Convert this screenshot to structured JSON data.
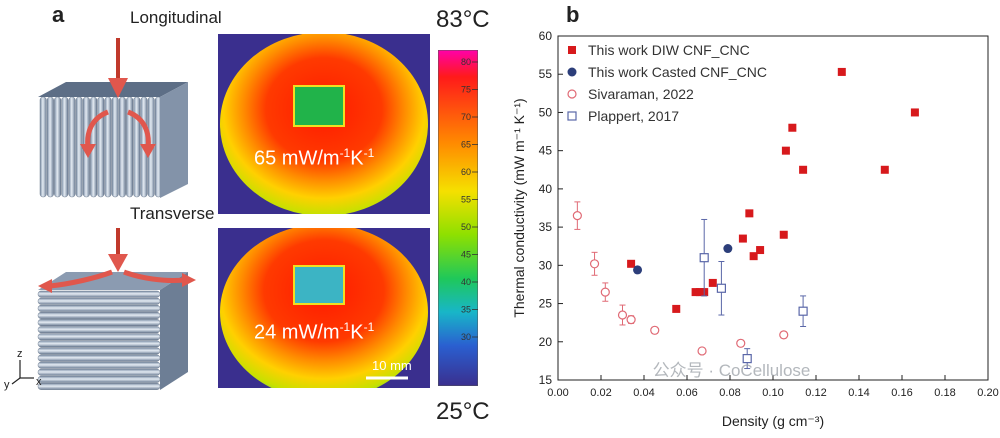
{
  "panel_a": {
    "letter": "a",
    "longitudinal_label": "Longitudinal",
    "transverse_label": "Transverse",
    "top_image_label": "65 mW/m",
    "top_image_sup": "-1",
    "top_image_unit": "K",
    "top_image_sup2": "-1",
    "bottom_image_label": "24 mW/m",
    "bottom_image_sup": "-1",
    "bottom_image_unit": "K",
    "bottom_image_sup2": "-1",
    "scale_bar": "10 mm",
    "temp_max": "83°C",
    "temp_min": "25°C",
    "colorbar_ticks": [
      "80",
      "75",
      "70",
      "65",
      "60",
      "55",
      "50",
      "45",
      "40",
      "35",
      "30"
    ],
    "axes_labels": {
      "z": "z",
      "y": "y",
      "x": "x"
    }
  },
  "panel_b": {
    "letter": "b",
    "watermark": "公众号 · CoCellulose"
  },
  "chart_data": {
    "type": "scatter",
    "xlabel": "Density (g cm⁻³)",
    "ylabel": "Thermal conductivity (mW m⁻¹ K⁻¹)",
    "xlim": [
      0.0,
      0.2
    ],
    "ylim": [
      15,
      60
    ],
    "xticks": [
      "0.00",
      "0.02",
      "0.04",
      "0.06",
      "0.08",
      "0.10",
      "0.12",
      "0.14",
      "0.16",
      "0.18",
      "0.20"
    ],
    "yticks": [
      "15",
      "20",
      "25",
      "30",
      "35",
      "40",
      "45",
      "50",
      "55",
      "60"
    ],
    "legend_position": "top-left",
    "series": [
      {
        "name": "This work DIW CNF_CNC",
        "marker": "square-filled",
        "color": "#d7191c",
        "points": [
          [
            0.034,
            30.2
          ],
          [
            0.055,
            24.3
          ],
          [
            0.064,
            26.5
          ],
          [
            0.066,
            26.5
          ],
          [
            0.068,
            26.5
          ],
          [
            0.072,
            27.7
          ],
          [
            0.086,
            33.5
          ],
          [
            0.089,
            36.8
          ],
          [
            0.091,
            31.2
          ],
          [
            0.094,
            32.0
          ],
          [
            0.105,
            34.0
          ],
          [
            0.106,
            45.0
          ],
          [
            0.109,
            48.0
          ],
          [
            0.114,
            42.5
          ],
          [
            0.132,
            55.3
          ],
          [
            0.152,
            42.5
          ],
          [
            0.166,
            50.0
          ]
        ]
      },
      {
        "name": "This work Casted CNF_CNC",
        "marker": "circle-filled",
        "color": "#2c3e7a",
        "points": [
          [
            0.037,
            29.4
          ],
          [
            0.079,
            32.2
          ]
        ]
      },
      {
        "name": "Sivaraman, 2022",
        "marker": "circle-open",
        "color": "#e06a75",
        "points": [
          [
            0.009,
            36.5,
            1.8
          ],
          [
            0.017,
            30.2,
            1.5
          ],
          [
            0.022,
            26.5,
            1.2
          ],
          [
            0.03,
            23.5,
            1.3
          ],
          [
            0.034,
            22.9,
            0.5
          ],
          [
            0.045,
            21.5,
            0.4
          ],
          [
            0.067,
            18.8,
            0.4
          ],
          [
            0.085,
            19.8,
            0.4
          ],
          [
            0.105,
            20.9,
            0.4
          ]
        ]
      },
      {
        "name": "Plappert, 2017",
        "marker": "square-open",
        "color": "#5a67a8",
        "points": [
          [
            0.068,
            31.0,
            5.0
          ],
          [
            0.076,
            27.0,
            3.5
          ],
          [
            0.088,
            17.8,
            1.3
          ],
          [
            0.114,
            24.0,
            2.0
          ]
        ]
      }
    ]
  }
}
